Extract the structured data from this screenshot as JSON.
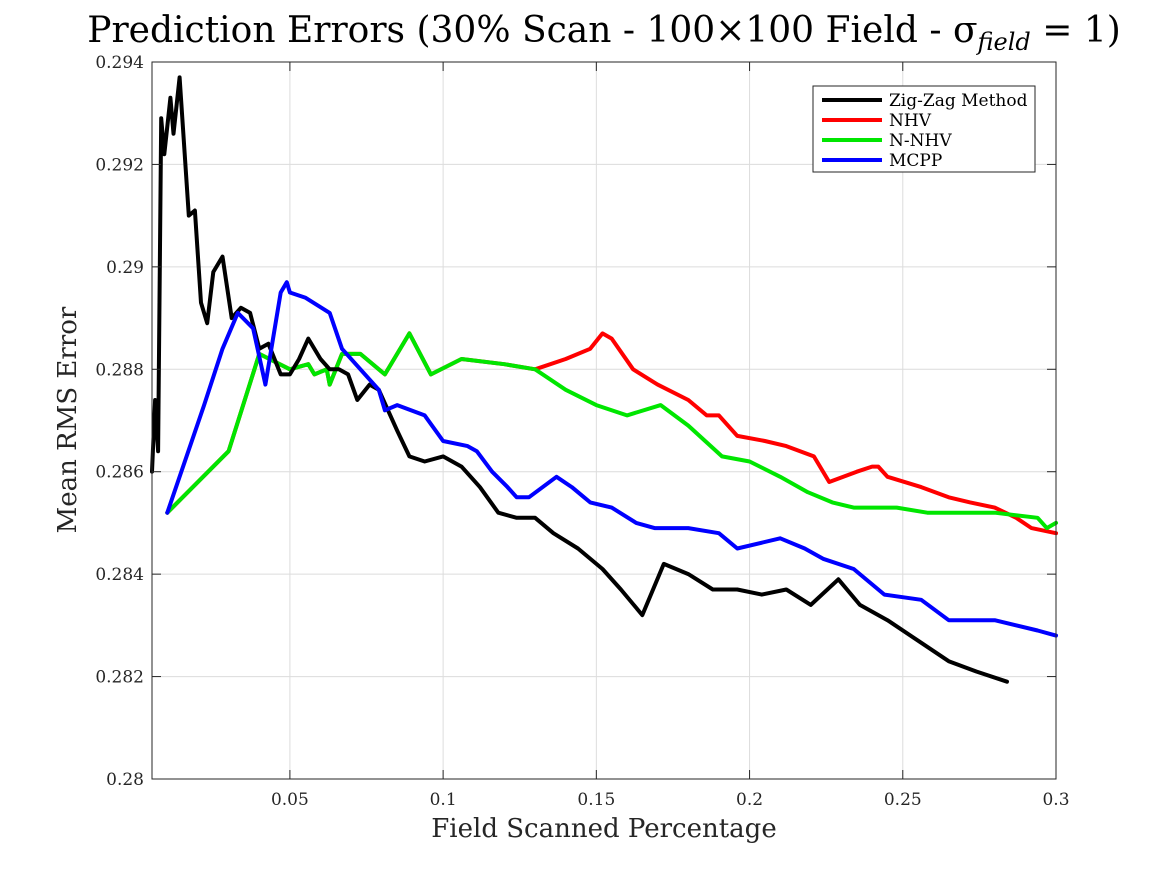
{
  "chart_data": {
    "type": "line",
    "title": {
      "main": "Prediction Errors (30% Scan - 100×100 Field - σ",
      "sub": "field",
      "end": " = 1)"
    },
    "xlabel": "Field Scanned Percentage",
    "ylabel": "Mean RMS Error",
    "xlim": [
      0.005,
      0.3
    ],
    "ylim": [
      0.28,
      0.294
    ],
    "xticks": [
      0.05,
      0.1,
      0.15,
      0.2,
      0.25,
      0.3
    ],
    "xtick_labels": [
      "0.05",
      "0.1",
      "0.15",
      "0.2",
      "0.25",
      "0.3"
    ],
    "yticks": [
      0.28,
      0.282,
      0.284,
      0.286,
      0.288,
      0.29,
      0.292,
      0.294
    ],
    "ytick_labels": [
      "0.28",
      "0.282",
      "0.284",
      "0.286",
      "0.288",
      "0.29",
      "0.292",
      "0.294"
    ],
    "grid": true,
    "legend_position": "top-right",
    "series": [
      {
        "name": "Zig-Zag Method",
        "color": "#000000",
        "points": [
          [
            0.005,
            0.286
          ],
          [
            0.006,
            0.2874
          ],
          [
            0.007,
            0.2864
          ],
          [
            0.008,
            0.2929
          ],
          [
            0.009,
            0.2922
          ],
          [
            0.011,
            0.2933
          ],
          [
            0.012,
            0.2926
          ],
          [
            0.014,
            0.2937
          ],
          [
            0.017,
            0.291
          ],
          [
            0.019,
            0.2911
          ],
          [
            0.021,
            0.2893
          ],
          [
            0.023,
            0.2889
          ],
          [
            0.025,
            0.2899
          ],
          [
            0.028,
            0.2902
          ],
          [
            0.031,
            0.289
          ],
          [
            0.034,
            0.2892
          ],
          [
            0.037,
            0.2891
          ],
          [
            0.04,
            0.2884
          ],
          [
            0.043,
            0.2885
          ],
          [
            0.047,
            0.2879
          ],
          [
            0.05,
            0.2879
          ],
          [
            0.053,
            0.2882
          ],
          [
            0.056,
            0.2886
          ],
          [
            0.06,
            0.2882
          ],
          [
            0.063,
            0.288
          ],
          [
            0.066,
            0.288
          ],
          [
            0.069,
            0.2879
          ],
          [
            0.072,
            0.2874
          ],
          [
            0.076,
            0.2877
          ],
          [
            0.079,
            0.2876
          ],
          [
            0.082,
            0.2872
          ],
          [
            0.085,
            0.2868
          ],
          [
            0.089,
            0.2863
          ],
          [
            0.094,
            0.2862
          ],
          [
            0.1,
            0.2863
          ],
          [
            0.106,
            0.2861
          ],
          [
            0.112,
            0.2857
          ],
          [
            0.118,
            0.2852
          ],
          [
            0.124,
            0.2851
          ],
          [
            0.13,
            0.2851
          ],
          [
            0.136,
            0.2848
          ],
          [
            0.144,
            0.2845
          ],
          [
            0.152,
            0.2841
          ],
          [
            0.158,
            0.2837
          ],
          [
            0.165,
            0.2832
          ],
          [
            0.172,
            0.2842
          ],
          [
            0.18,
            0.284
          ],
          [
            0.188,
            0.2837
          ],
          [
            0.196,
            0.2837
          ],
          [
            0.204,
            0.2836
          ],
          [
            0.212,
            0.2837
          ],
          [
            0.22,
            0.2834
          ],
          [
            0.229,
            0.2839
          ],
          [
            0.236,
            0.2834
          ],
          [
            0.245,
            0.2831
          ],
          [
            0.255,
            0.2827
          ],
          [
            0.265,
            0.2823
          ],
          [
            0.274,
            0.2821
          ],
          [
            0.284,
            0.2819
          ]
        ]
      },
      {
        "name": "NHV",
        "color": "#ff0000",
        "points": [
          [
            0.01,
            0.2852
          ],
          [
            0.03,
            0.2864
          ],
          [
            0.04,
            0.2883
          ],
          [
            0.05,
            0.288
          ],
          [
            0.056,
            0.2881
          ],
          [
            0.058,
            0.2879
          ],
          [
            0.062,
            0.288
          ],
          [
            0.063,
            0.2877
          ],
          [
            0.067,
            0.2883
          ],
          [
            0.073,
            0.2883
          ],
          [
            0.081,
            0.2879
          ],
          [
            0.089,
            0.2887
          ],
          [
            0.096,
            0.2879
          ],
          [
            0.106,
            0.2882
          ],
          [
            0.12,
            0.2881
          ],
          [
            0.13,
            0.288
          ],
          [
            0.14,
            0.2882
          ],
          [
            0.148,
            0.2884
          ],
          [
            0.152,
            0.2887
          ],
          [
            0.155,
            0.2886
          ],
          [
            0.162,
            0.288
          ],
          [
            0.17,
            0.2877
          ],
          [
            0.18,
            0.2874
          ],
          [
            0.186,
            0.2871
          ],
          [
            0.19,
            0.2871
          ],
          [
            0.196,
            0.2867
          ],
          [
            0.205,
            0.2866
          ],
          [
            0.212,
            0.2865
          ],
          [
            0.221,
            0.2863
          ],
          [
            0.226,
            0.2858
          ],
          [
            0.235,
            0.286
          ],
          [
            0.24,
            0.2861
          ],
          [
            0.242,
            0.2861
          ],
          [
            0.245,
            0.2859
          ],
          [
            0.256,
            0.2857
          ],
          [
            0.265,
            0.2855
          ],
          [
            0.272,
            0.2854
          ],
          [
            0.28,
            0.2853
          ],
          [
            0.287,
            0.2851
          ],
          [
            0.292,
            0.2849
          ],
          [
            0.3,
            0.2848
          ]
        ]
      },
      {
        "name": "N-NHV",
        "color": "#00e600",
        "points": [
          [
            0.01,
            0.2852
          ],
          [
            0.03,
            0.2864
          ],
          [
            0.04,
            0.2883
          ],
          [
            0.05,
            0.288
          ],
          [
            0.056,
            0.2881
          ],
          [
            0.058,
            0.2879
          ],
          [
            0.062,
            0.288
          ],
          [
            0.063,
            0.2877
          ],
          [
            0.067,
            0.2883
          ],
          [
            0.073,
            0.2883
          ],
          [
            0.081,
            0.2879
          ],
          [
            0.089,
            0.2887
          ],
          [
            0.096,
            0.2879
          ],
          [
            0.106,
            0.2882
          ],
          [
            0.12,
            0.2881
          ],
          [
            0.13,
            0.288
          ],
          [
            0.14,
            0.2876
          ],
          [
            0.15,
            0.2873
          ],
          [
            0.16,
            0.2871
          ],
          [
            0.171,
            0.2873
          ],
          [
            0.18,
            0.2869
          ],
          [
            0.191,
            0.2863
          ],
          [
            0.2,
            0.2862
          ],
          [
            0.21,
            0.2859
          ],
          [
            0.219,
            0.2856
          ],
          [
            0.227,
            0.2854
          ],
          [
            0.234,
            0.2853
          ],
          [
            0.242,
            0.2853
          ],
          [
            0.248,
            0.2853
          ],
          [
            0.258,
            0.2852
          ],
          [
            0.268,
            0.2852
          ],
          [
            0.28,
            0.2852
          ],
          [
            0.294,
            0.2851
          ],
          [
            0.297,
            0.2849
          ],
          [
            0.3,
            0.285
          ]
        ]
      },
      {
        "name": "MCPP",
        "color": "#0000ff",
        "points": [
          [
            0.01,
            0.2852
          ],
          [
            0.022,
            0.2873
          ],
          [
            0.028,
            0.2884
          ],
          [
            0.033,
            0.2891
          ],
          [
            0.038,
            0.2888
          ],
          [
            0.042,
            0.2877
          ],
          [
            0.047,
            0.2895
          ],
          [
            0.049,
            0.2897
          ],
          [
            0.05,
            0.2895
          ],
          [
            0.055,
            0.2894
          ],
          [
            0.063,
            0.2891
          ],
          [
            0.067,
            0.2884
          ],
          [
            0.073,
            0.288
          ],
          [
            0.079,
            0.2876
          ],
          [
            0.081,
            0.2872
          ],
          [
            0.085,
            0.2873
          ],
          [
            0.094,
            0.2871
          ],
          [
            0.1,
            0.2866
          ],
          [
            0.108,
            0.2865
          ],
          [
            0.111,
            0.2864
          ],
          [
            0.116,
            0.286
          ],
          [
            0.121,
            0.2857
          ],
          [
            0.124,
            0.2855
          ],
          [
            0.128,
            0.2855
          ],
          [
            0.137,
            0.2859
          ],
          [
            0.142,
            0.2857
          ],
          [
            0.146,
            0.2855
          ],
          [
            0.148,
            0.2854
          ],
          [
            0.155,
            0.2853
          ],
          [
            0.163,
            0.285
          ],
          [
            0.169,
            0.2849
          ],
          [
            0.18,
            0.2849
          ],
          [
            0.19,
            0.2848
          ],
          [
            0.196,
            0.2845
          ],
          [
            0.21,
            0.2847
          ],
          [
            0.218,
            0.2845
          ],
          [
            0.224,
            0.2843
          ],
          [
            0.234,
            0.2841
          ],
          [
            0.244,
            0.2836
          ],
          [
            0.256,
            0.2835
          ],
          [
            0.265,
            0.2831
          ],
          [
            0.28,
            0.2831
          ],
          [
            0.294,
            0.2829
          ],
          [
            0.3,
            0.2828
          ]
        ]
      }
    ]
  }
}
